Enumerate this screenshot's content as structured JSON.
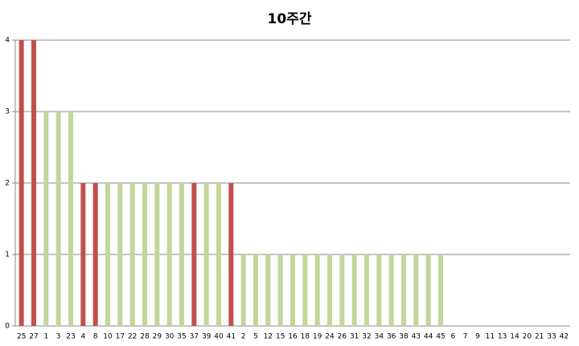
{
  "chart_data": {
    "type": "bar",
    "title": "10주간",
    "categories": [
      "25",
      "27",
      "1",
      "3",
      "23",
      "4",
      "8",
      "10",
      "17",
      "22",
      "28",
      "29",
      "30",
      "35",
      "37",
      "39",
      "40",
      "41",
      "2",
      "5",
      "12",
      "15",
      "16",
      "18",
      "19",
      "24",
      "26",
      "31",
      "32",
      "34",
      "36",
      "38",
      "43",
      "44",
      "45",
      "6",
      "7",
      "9",
      "11",
      "13",
      "14",
      "20",
      "21",
      "33",
      "42"
    ],
    "values": [
      4,
      4,
      3,
      3,
      3,
      2,
      2,
      2,
      2,
      2,
      2,
      2,
      2,
      2,
      2,
      2,
      2,
      2,
      1,
      1,
      1,
      1,
      1,
      1,
      1,
      1,
      1,
      1,
      1,
      1,
      1,
      1,
      1,
      1,
      1,
      0,
      0,
      0,
      0,
      0,
      0,
      0,
      0,
      0,
      0
    ],
    "colors": [
      "#c0504d",
      "#c0504d",
      "#c3d69b",
      "#c3d69b",
      "#c3d69b",
      "#c0504d",
      "#c0504d",
      "#c3d69b",
      "#c3d69b",
      "#c3d69b",
      "#c3d69b",
      "#c3d69b",
      "#c3d69b",
      "#c3d69b",
      "#c0504d",
      "#c3d69b",
      "#c3d69b",
      "#c0504d",
      "#c3d69b",
      "#c3d69b",
      "#c3d69b",
      "#c3d69b",
      "#c3d69b",
      "#c3d69b",
      "#c3d69b",
      "#c3d69b",
      "#c3d69b",
      "#c3d69b",
      "#c3d69b",
      "#c3d69b",
      "#c3d69b",
      "#c3d69b",
      "#c3d69b",
      "#c3d69b",
      "#c3d69b",
      "#c3d69b",
      "#c3d69b",
      "#c3d69b",
      "#c3d69b",
      "#c3d69b",
      "#c3d69b",
      "#c3d69b",
      "#c3d69b",
      "#c3d69b",
      "#c3d69b"
    ],
    "ylim": [
      0,
      4
    ],
    "yticks": [
      0,
      1,
      2,
      3,
      4
    ],
    "grid": true
  }
}
